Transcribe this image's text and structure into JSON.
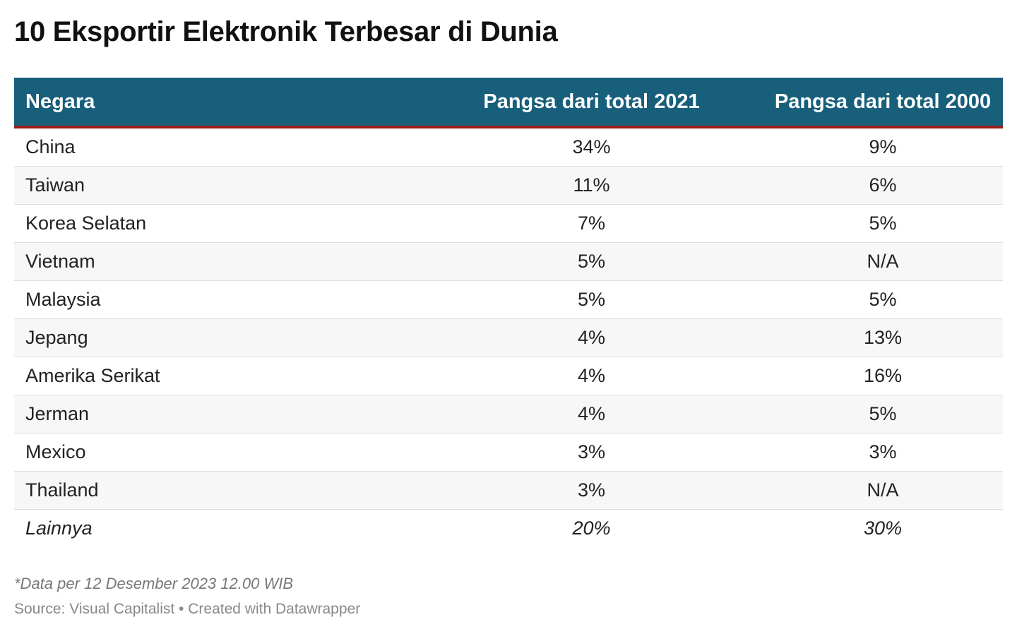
{
  "chart_data": {
    "type": "table",
    "title": "10 Eksportir Elektronik Terbesar di Dunia",
    "columns": [
      "Negara",
      "Pangsa dari total 2021",
      "Pangsa dari total 2000"
    ],
    "rows": [
      {
        "negara": "China",
        "y2021": "34%",
        "y2000": "9%"
      },
      {
        "negara": "Taiwan",
        "y2021": "11%",
        "y2000": "6%"
      },
      {
        "negara": "Korea Selatan",
        "y2021": "7%",
        "y2000": "5%"
      },
      {
        "negara": "Vietnam",
        "y2021": "5%",
        "y2000": "N/A"
      },
      {
        "negara": "Malaysia",
        "y2021": "5%",
        "y2000": "5%"
      },
      {
        "negara": "Jepang",
        "y2021": "4%",
        "y2000": "13%"
      },
      {
        "negara": "Amerika Serikat",
        "y2021": "4%",
        "y2000": "16%"
      },
      {
        "negara": "Jerman",
        "y2021": "4%",
        "y2000": "5%"
      },
      {
        "negara": "Mexico",
        "y2021": "3%",
        "y2000": "3%"
      },
      {
        "negara": "Thailand",
        "y2021": "3%",
        "y2000": "N/A"
      },
      {
        "negara": "Lainnya",
        "y2021": "20%",
        "y2000": "30%"
      }
    ],
    "note": "*Data per 12 Desember 2023 12.00 WIB",
    "source": "Source: Visual Capitalist • Created with Datawrapper"
  },
  "colors": {
    "header_background": "#185f7b",
    "header_rule": "#9b1d17",
    "header_text": "#ffffff",
    "stripe": "#f7f7f7"
  }
}
